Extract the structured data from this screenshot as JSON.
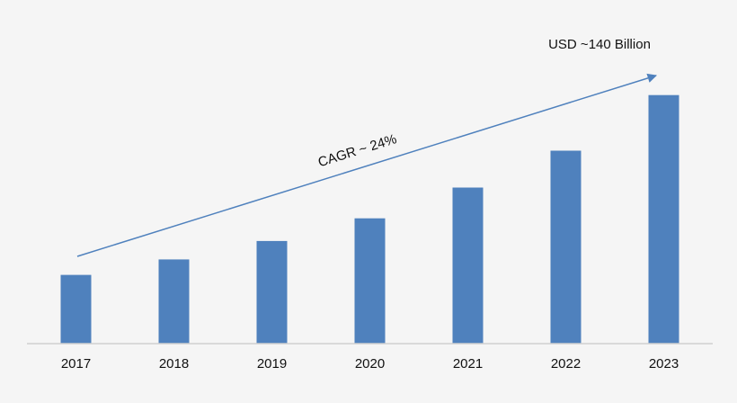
{
  "chart_data": {
    "type": "bar",
    "categories": [
      "2017",
      "2018",
      "2019",
      "2020",
      "2021",
      "2022",
      "2023"
    ],
    "values": [
      38.7,
      47.4,
      57.8,
      70.6,
      87.9,
      108.7,
      140
    ],
    "ylim": [
      0,
      152
    ],
    "grid": false,
    "legend": "none",
    "annotations": {
      "end_value_label": "USD ~140 Billion",
      "trend_label": "CAGR ~ 24%"
    }
  },
  "colors": {
    "bar": "#4f81bd",
    "arrow": "#4f81bd",
    "axis": "#d0d0d0",
    "text": "#111111",
    "background": "#f5f5f5"
  }
}
